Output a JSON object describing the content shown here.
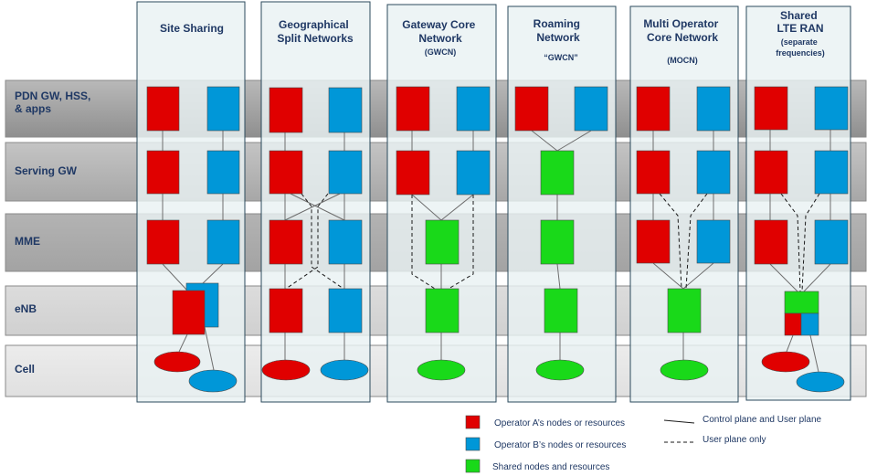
{
  "rows": [
    {
      "id": "pdn",
      "lines": [
        "PDN GW, HSS,",
        "& apps"
      ]
    },
    {
      "id": "sgw",
      "lines": [
        "Serving GW"
      ]
    },
    {
      "id": "mme",
      "lines": [
        "MME"
      ]
    },
    {
      "id": "enb",
      "lines": [
        "eNB"
      ]
    },
    {
      "id": "cell",
      "lines": [
        "Cell"
      ]
    }
  ],
  "columns": [
    {
      "id": "site-sharing",
      "title": [
        "Site Sharing"
      ],
      "sub": []
    },
    {
      "id": "geo-split",
      "title": [
        "Geographical",
        "Split Networks"
      ],
      "sub": []
    },
    {
      "id": "gwcn",
      "title": [
        "Gateway Core",
        "Network"
      ],
      "sub": [
        "(GWCN)"
      ]
    },
    {
      "id": "roaming",
      "title": [
        "Roaming",
        "Network"
      ],
      "sub": [
        "“GWCN”"
      ]
    },
    {
      "id": "mocn",
      "title": [
        "Multi Operator",
        "Core Network"
      ],
      "sub": [
        "(MOCN)"
      ]
    },
    {
      "id": "shared-ran",
      "title": [
        "Shared",
        "LTE RAN"
      ],
      "sub": [
        "(separate",
        "frequencies)"
      ]
    }
  ],
  "legend": {
    "operator_a": "Operator A’s nodes or resources",
    "operator_b": "Operator B’s nodes or resources",
    "shared": "Shared nodes and resources",
    "solid_line": "Control plane and User plane",
    "dashed_line": "User plane only"
  },
  "colors": {
    "operator_a": "#e00000",
    "operator_b": "#0097d8",
    "shared": "#19d919"
  }
}
